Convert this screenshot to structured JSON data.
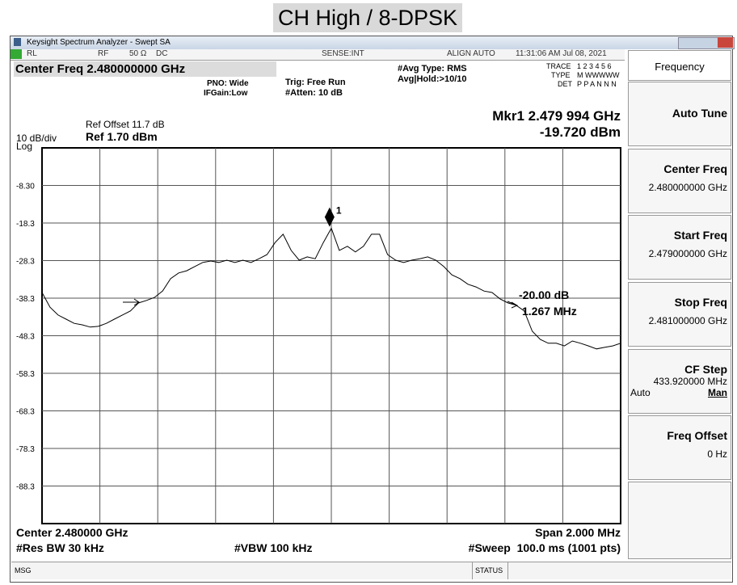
{
  "title": "CH High / 8-DPSK",
  "window": {
    "app_title": "Keysight Spectrum Analyzer - Swept SA",
    "status": [
      "RL",
      "RF",
      "50 Ω",
      "DC",
      "SENSE:INT",
      "ALIGN AUTO",
      "11:31:06 AM Jul 08, 2021"
    ]
  },
  "header": {
    "center_freq": "Center Freq 2.480000000 GHz",
    "pno": "PNO: Wide",
    "ifgain": "IFGain:Low",
    "trig": "Trig: Free Run",
    "atten": "#Atten: 10 dB",
    "avg_type": "#Avg Type: RMS",
    "avg_hold": "Avg|Hold:>10/10",
    "trace_label": "TRACE",
    "trace_nums": "1 2 3 4 5 6",
    "type_label": "TYPE",
    "type_vals": "M WWWWW",
    "det_label": "DET",
    "det_vals": "P P A N N N",
    "marker_freq": "Mkr1 2.479 994 GHz",
    "marker_level": "-19.720 dBm"
  },
  "chart_data": {
    "type": "line",
    "ref_offset": "Ref Offset 11.7 dB",
    "scale": "10 dB/div",
    "ref": "Ref 1.70 dBm",
    "log": "Log",
    "color": "#000000",
    "grid": true,
    "xlim": [
      2.479,
      2.481
    ],
    "ylim": [
      -98.3,
      1.7
    ],
    "yticks": [
      {
        "value": -8.3,
        "label": "-8.30"
      },
      -18.3,
      -28.3,
      -38.3,
      -48.3,
      -58.3,
      -68.3,
      -78.3,
      -88.3
    ],
    "values": [
      -36.8,
      -40.7,
      -42.8,
      -43.9,
      -45.0,
      -45.4,
      -46.0,
      -45.8,
      -45.0,
      -43.9,
      -42.8,
      -41.7,
      -39.6,
      -38.9,
      -38.1,
      -36.4,
      -33.1,
      -31.6,
      -31.0,
      -29.9,
      -28.8,
      -28.4,
      -28.8,
      -28.2,
      -28.8,
      -28.2,
      -28.8,
      -27.8,
      -26.7,
      -23.5,
      -21.3,
      -25.6,
      -28.2,
      -27.3,
      -27.8,
      -23.5,
      -19.7,
      -25.6,
      -24.5,
      -26.0,
      -24.5,
      -21.3,
      -21.3,
      -26.7,
      -28.2,
      -28.8,
      -28.2,
      -27.8,
      -27.3,
      -28.2,
      -29.9,
      -32.1,
      -33.1,
      -34.6,
      -35.3,
      -36.4,
      -36.8,
      -38.5,
      -39.6,
      -40.2,
      -41.7,
      -47.1,
      -49.3,
      -50.3,
      -50.3,
      -51.0,
      -49.7,
      -50.3,
      -51.0,
      -51.8,
      -51.4,
      -51.0,
      -50.3
    ],
    "marker": {
      "label": "1",
      "x": 2.479994,
      "y": -19.72
    },
    "ndb": {
      "level": "-20.00 dB",
      "bandwidth": "1.267 MHz"
    }
  },
  "footer": {
    "center": "Center 2.480000 GHz",
    "span": "Span 2.000 MHz",
    "rbw": "#Res BW 30 kHz",
    "vbw": "#VBW 100 kHz",
    "sweep": "#Sweep  100.0 ms (1001 pts)"
  },
  "softkeys": {
    "title": "Frequency",
    "items": [
      {
        "label": "Auto Tune"
      },
      {
        "label": "Center Freq",
        "value": "2.480000000 GHz"
      },
      {
        "label": "Start Freq",
        "value": "2.479000000 GHz"
      },
      {
        "label": "Stop Freq",
        "value": "2.481000000 GHz"
      },
      {
        "label": "CF Step",
        "value": "433.920000 MHz",
        "options": [
          "Auto",
          "Man"
        ]
      },
      {
        "label": "Freq Offset",
        "value": "0 Hz"
      }
    ]
  },
  "statusbar": {
    "msg": "MSG",
    "status": "STATUS"
  }
}
